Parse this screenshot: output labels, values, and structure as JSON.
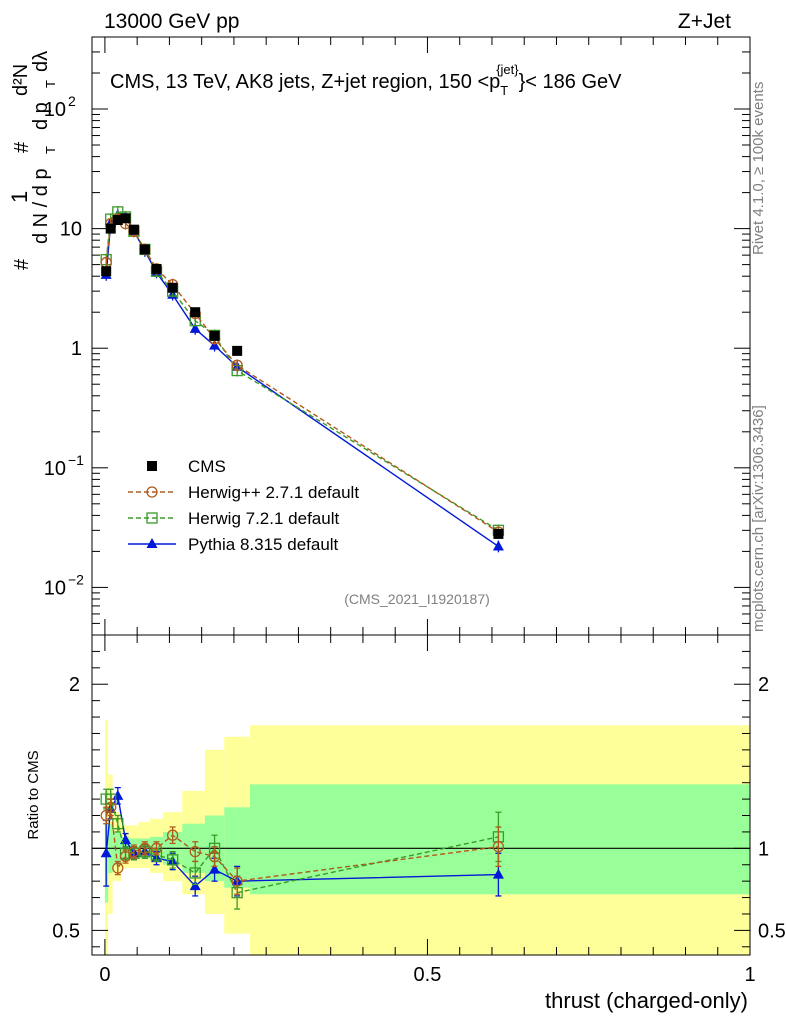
{
  "header": {
    "left": "13000 GeV pp",
    "right": "Z+Jet"
  },
  "side_text": {
    "rivet": "Rivet 4.1.0, ≥ 100k events",
    "mcplots": "mcplots.cern.ch [arXiv:1306.3436]"
  },
  "colors": {
    "cms": "#000000",
    "herwig_pp": "#b05a1c",
    "herwig7": "#3a9a2a",
    "pythia": "#0018d8",
    "band_inner": "#99ff99",
    "band_outer": "#ffff99"
  },
  "chart_data": [
    {
      "type": "scatter",
      "panel": "main",
      "title_parts": {
        "prefix": "CMS, 13 TeV, AK8 jets, Z+jet region, 150 <p",
        "sub": "T",
        "sup": "{jet}",
        "suffix": "}< 186 GeV"
      },
      "ylabel_parts": {
        "num": "1",
        "den": "d N / d p",
        "den_sub": "T",
        "num2": "d²N",
        "den2": "d p",
        "den2_sub": "T",
        "den2_end": "dλ",
        "hash": "#"
      },
      "yscale": "log",
      "ylim": [
        0.004,
        400
      ],
      "yticks": [
        {
          "v": 0.01,
          "base": "10",
          "exp": "−2"
        },
        {
          "v": 0.1,
          "base": "10",
          "exp": "−1"
        },
        {
          "v": 1,
          "base": "1",
          "exp": ""
        },
        {
          "v": 10,
          "base": "10",
          "exp": ""
        },
        {
          "v": 100,
          "base": "10",
          "exp": "2"
        }
      ],
      "xlim": [
        -0.02,
        1.0
      ],
      "watermark": "(CMS_2021_I1920187)",
      "legend_position": "lower-left",
      "series": [
        {
          "name": "CMS",
          "marker": "square-filled",
          "x": [
            0.002,
            0.009,
            0.02,
            0.032,
            0.045,
            0.062,
            0.08,
            0.105,
            0.14,
            0.17,
            0.205,
            0.61
          ],
          "y": [
            4.4,
            10.0,
            11.8,
            12.2,
            9.8,
            6.7,
            4.6,
            3.2,
            2.0,
            1.27,
            0.95,
            0.028
          ]
        },
        {
          "name": "Herwig++ 2.7.1 default",
          "marker": "circle-open",
          "line": "dashed",
          "x": [
            0.002,
            0.009,
            0.02,
            0.032,
            0.045,
            0.062,
            0.08,
            0.105,
            0.14,
            0.17,
            0.205,
            0.61
          ],
          "y": [
            5.2,
            11.0,
            12.0,
            11.0,
            9.5,
            6.7,
            4.6,
            3.4,
            1.95,
            1.2,
            0.72,
            0.029
          ]
        },
        {
          "name": "Herwig 7.2.1 default",
          "marker": "square-open",
          "line": "dashed",
          "x": [
            0.002,
            0.009,
            0.02,
            0.032,
            0.045,
            0.062,
            0.08,
            0.105,
            0.14,
            0.17,
            0.205,
            0.61
          ],
          "y": [
            5.5,
            12.0,
            13.8,
            12.5,
            9.5,
            6.7,
            4.4,
            3.0,
            1.7,
            1.28,
            0.65,
            0.03
          ]
        },
        {
          "name": "Pythia 8.315 default",
          "marker": "triangle-filled",
          "line": "solid",
          "x": [
            0.002,
            0.009,
            0.02,
            0.032,
            0.045,
            0.062,
            0.08,
            0.105,
            0.14,
            0.17,
            0.205,
            0.61
          ],
          "y": [
            4.1,
            11.2,
            13.0,
            12.5,
            9.5,
            6.5,
            4.3,
            2.8,
            1.45,
            1.05,
            0.7,
            0.022
          ]
        }
      ]
    },
    {
      "type": "scatter",
      "panel": "ratio",
      "ylabel": "Ratio to CMS",
      "ylim": [
        0.35,
        2.3
      ],
      "yticks": [
        0.5,
        1,
        2
      ],
      "xlim": [
        -0.02,
        1.0
      ],
      "xticks": [
        0,
        0.5,
        1
      ],
      "xlabel": "thrust (charged-only)",
      "bins": [
        0,
        0.005,
        0.012,
        0.025,
        0.038,
        0.052,
        0.07,
        0.09,
        0.12,
        0.155,
        0.185,
        0.225,
        1.0
      ],
      "band_inner": [
        [
          0.67,
          1.35
        ],
        [
          0.85,
          1.15
        ],
        [
          0.9,
          1.1
        ],
        [
          0.93,
          1.07
        ],
        [
          0.94,
          1.06
        ],
        [
          0.94,
          1.06
        ],
        [
          0.93,
          1.07
        ],
        [
          0.9,
          1.1
        ],
        [
          0.85,
          1.15
        ],
        [
          0.8,
          1.2
        ],
        [
          0.76,
          1.25
        ],
        [
          0.72,
          1.39
        ]
      ],
      "band_outer": [
        [
          0.35,
          1.78
        ],
        [
          0.6,
          1.45
        ],
        [
          0.8,
          1.22
        ],
        [
          0.88,
          1.14
        ],
        [
          0.88,
          1.14
        ],
        [
          0.88,
          1.16
        ],
        [
          0.85,
          1.18
        ],
        [
          0.8,
          1.22
        ],
        [
          0.72,
          1.35
        ],
        [
          0.6,
          1.6
        ],
        [
          0.48,
          1.68
        ],
        [
          0.35,
          1.75
        ]
      ],
      "series": [
        {
          "name": "Herwig++ 2.7.1 default",
          "marker": "circle-open",
          "line": "dashed",
          "x": [
            0.002,
            0.009,
            0.02,
            0.032,
            0.045,
            0.062,
            0.08,
            0.105,
            0.14,
            0.17,
            0.205,
            0.61
          ],
          "y": [
            1.2,
            1.25,
            0.88,
            0.95,
            0.98,
            1.0,
            1.0,
            1.08,
            0.98,
            0.95,
            0.8,
            1.01
          ],
          "err": [
            0.05,
            0.05,
            0.04,
            0.04,
            0.04,
            0.04,
            0.04,
            0.05,
            0.06,
            0.06,
            0.08,
            0.12
          ]
        },
        {
          "name": "Herwig 7.2.1 default",
          "marker": "square-open",
          "line": "dashed",
          "x": [
            0.002,
            0.009,
            0.02,
            0.032,
            0.045,
            0.062,
            0.08,
            0.105,
            0.14,
            0.17,
            0.205,
            0.61
          ],
          "y": [
            1.3,
            1.3,
            1.15,
            0.97,
            0.97,
            0.98,
            0.96,
            0.93,
            0.85,
            1.0,
            0.73,
            1.07
          ],
          "err": [
            0.06,
            0.06,
            0.05,
            0.04,
            0.04,
            0.04,
            0.04,
            0.05,
            0.07,
            0.08,
            0.1,
            0.15
          ]
        },
        {
          "name": "Pythia 8.315 default",
          "marker": "triangle-filled",
          "line": "solid",
          "x": [
            0.002,
            0.009,
            0.02,
            0.032,
            0.045,
            0.062,
            0.08,
            0.105,
            0.14,
            0.17,
            0.205,
            0.61
          ],
          "y": [
            0.97,
            1.24,
            1.32,
            1.05,
            0.97,
            0.98,
            0.94,
            0.92,
            0.77,
            0.87,
            0.8,
            0.84
          ],
          "err": [
            0.2,
            0.06,
            0.05,
            0.04,
            0.04,
            0.04,
            0.04,
            0.05,
            0.06,
            0.07,
            0.09,
            0.13
          ]
        }
      ]
    }
  ]
}
